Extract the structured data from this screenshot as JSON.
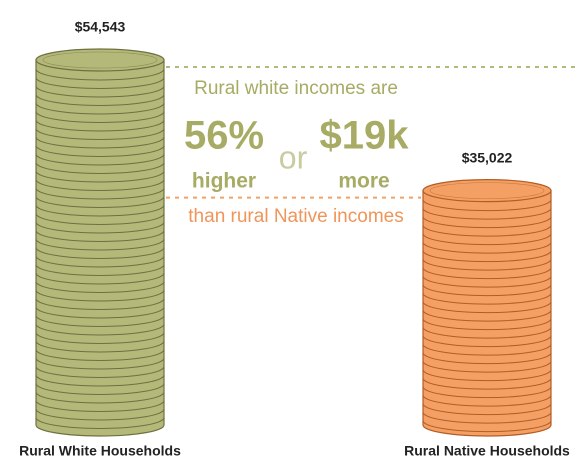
{
  "chart_data": {
    "type": "coin-stack",
    "categories": [
      "Rural White Households",
      "Rural Native Households"
    ],
    "series": [
      {
        "name": null,
        "values": [
          54543,
          35022
        ],
        "value_labels": [
          "$54,543",
          "$35,022"
        ],
        "colors": [
          "#b4b879",
          "#f4a064"
        ]
      }
    ],
    "annotations": {
      "intro": "Rural white incomes are",
      "pct": "56%",
      "pct_word": "higher",
      "or": "or",
      "diff": "$19k",
      "diff_word": "more",
      "outro": "than rural Native incomes"
    }
  }
}
